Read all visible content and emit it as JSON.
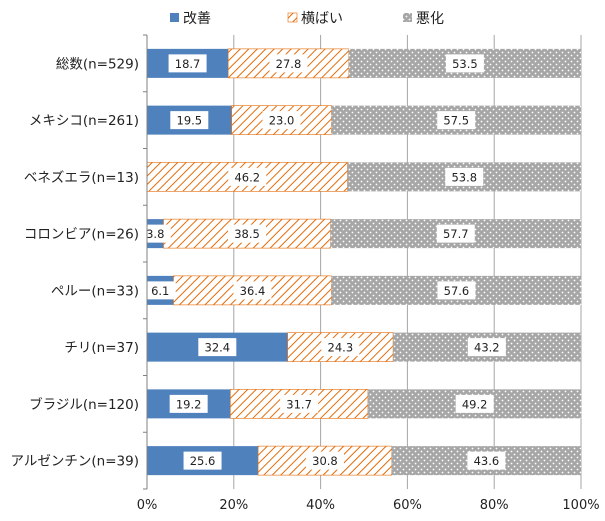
{
  "chart_data": {
    "type": "bar",
    "orientation": "horizontal",
    "stacked": true,
    "percent_stacked": true,
    "categories": [
      "総数(n=529)",
      "メキシコ(n=261)",
      "ベネズエラ(n=13)",
      "コロンビア(n=26)",
      "ペルー(n=33)",
      "チリ(n=37)",
      "ブラジル(n=120)",
      "アルゼンチン(n=39)"
    ],
    "series": [
      {
        "name": "改善",
        "color": "#4f81bd",
        "pattern": "solid",
        "values": [
          18.7,
          19.5,
          0,
          3.8,
          6.1,
          32.4,
          19.2,
          25.6
        ],
        "labels": [
          "18.7",
          "19.5",
          "",
          "3.8",
          "6.1",
          "32.4",
          "19.2",
          "25.6"
        ]
      },
      {
        "name": "横ばい",
        "color": "#e46c0a",
        "pattern": "diagonal-hatch",
        "values": [
          27.8,
          23.0,
          46.2,
          38.5,
          36.4,
          24.3,
          31.7,
          30.8
        ],
        "labels": [
          "27.8",
          "23.0",
          "46.2",
          "38.5",
          "36.4",
          "24.3",
          "31.7",
          "30.8"
        ]
      },
      {
        "name": "悪化",
        "color": "#a6a6a6",
        "pattern": "dots",
        "values": [
          53.5,
          57.5,
          53.8,
          57.7,
          57.6,
          43.2,
          49.2,
          43.6
        ],
        "labels": [
          "53.5",
          "57.5",
          "53.8",
          "57.7",
          "57.6",
          "43.2",
          "49.2",
          "43.6"
        ]
      }
    ],
    "xlim": [
      0,
      100
    ],
    "x_ticks": [
      "0%",
      "20%",
      "40%",
      "60%",
      "80%",
      "100%"
    ],
    "grid": true,
    "legend": "top-center",
    "title": "",
    "xlabel": "",
    "ylabel": ""
  }
}
